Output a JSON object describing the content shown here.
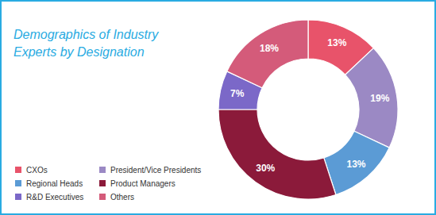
{
  "chart_data": {
    "type": "pie",
    "title": "Demographics of Industry",
    "subtitle": "Experts by Designation",
    "categories": [
      "CXOs",
      "President/Vice Presidents",
      "Regional Heads",
      "Product Managers",
      "R&D Executives",
      "Others"
    ],
    "values": [
      13,
      19,
      13,
      30,
      7,
      18
    ],
    "value_labels": [
      "13%",
      "19%",
      "13%",
      "30%",
      "7%",
      "18%"
    ],
    "colors": [
      "#E8536A",
      "#9B89C4",
      "#5B9BD5",
      "#8B1A3A",
      "#7B68C8",
      "#D45B7A"
    ],
    "data_labels": true,
    "legend": "lower left"
  }
}
